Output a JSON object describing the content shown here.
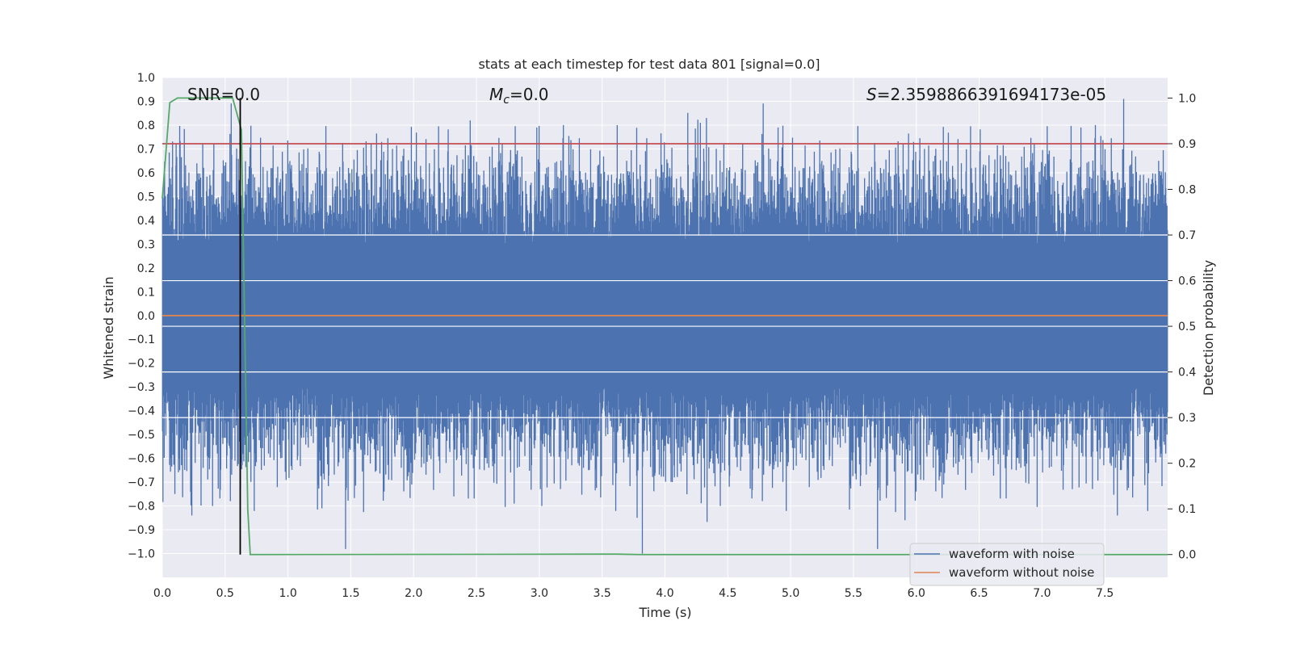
{
  "chart_data": {
    "type": "line",
    "title": "stats at each timestep for test data 801 [signal=0.0]",
    "xlabel": "Time (s)",
    "ylabel": "Whitened strain",
    "ylabel_right": "Detection probability",
    "xlim": [
      0.0,
      8.0
    ],
    "ylim": [
      -1.1,
      1.0
    ],
    "ylim_right": [
      -0.05,
      1.045
    ],
    "x_ticks": [
      "0.0",
      "0.5",
      "1.0",
      "1.5",
      "2.0",
      "2.5",
      "3.0",
      "3.5",
      "4.0",
      "4.5",
      "5.0",
      "5.5",
      "6.0",
      "6.5",
      "7.0",
      "7.5"
    ],
    "y_ticks": [
      "1.0",
      "0.9",
      "0.8",
      "0.7",
      "0.6",
      "0.5",
      "0.4",
      "0.3",
      "0.2",
      "0.1",
      "0.0",
      "−0.1",
      "−0.2",
      "−0.3",
      "−0.4",
      "−0.5",
      "−0.6",
      "−0.7",
      "−0.8",
      "−0.9",
      "−1.0"
    ],
    "y_ticks_right": [
      "1.0",
      "0.9",
      "0.8",
      "0.7",
      "0.6",
      "0.5",
      "0.4",
      "0.3",
      "0.2",
      "0.1",
      "0.0"
    ],
    "grid": true,
    "annotations": {
      "snr": "SNR=0.0",
      "mc_symbol": "M",
      "mc_sub": "c",
      "mc_value": "=0.0",
      "s_symbol": "S",
      "s_value": "=2.3598866391694173e-05"
    },
    "series": [
      {
        "name": "waveform with noise",
        "color": "#4c72b0",
        "axis": "left",
        "envelope_note": "dense noise",
        "peaks_top": [
          [
            0.11,
            0.72
          ],
          [
            0.41,
            0.72
          ],
          [
            0.59,
            0.66
          ],
          [
            2.45,
            0.82
          ],
          [
            2.98,
            0.79
          ],
          [
            3.62,
            0.8
          ],
          [
            4.33,
            0.83
          ],
          [
            4.9,
            0.79
          ],
          [
            7.31,
            0.79
          ],
          [
            7.65,
            0.91
          ]
        ],
        "peaks_bottom": [
          [
            0.1,
            -0.75
          ],
          [
            0.4,
            -0.8
          ],
          [
            1.27,
            -0.81
          ],
          [
            2.32,
            -0.76
          ],
          [
            2.8,
            -0.79
          ],
          [
            3.02,
            -0.8
          ],
          [
            3.82,
            -1.0
          ],
          [
            4.44,
            -0.8
          ],
          [
            5.91,
            -0.86
          ],
          [
            7.6,
            -0.84
          ]
        ]
      },
      {
        "name": "waveform without noise",
        "color": "#dd8452",
        "axis": "left",
        "x": [
          0.0,
          8.0
        ],
        "y": [
          0.0,
          0.0
        ]
      },
      {
        "color": "#55a868",
        "axis": "right",
        "x": [
          0.0,
          0.06,
          0.12,
          0.56,
          0.63,
          0.68,
          0.7,
          3.6,
          3.8,
          8.0
        ],
        "y": [
          0.78,
          0.99,
          1.0,
          1.0,
          0.93,
          0.1,
          0.0,
          0.001,
          0.0,
          0.0
        ]
      },
      {
        "color": "#c44e52",
        "axis": "right",
        "x": [
          0.0,
          8.0
        ],
        "y": [
          0.9,
          0.9
        ]
      },
      {
        "color": "#000000",
        "axis": "right",
        "x": [
          0.62,
          0.62
        ],
        "y": [
          0.0,
          1.0
        ]
      }
    ],
    "legend": {
      "placement": "lower-right",
      "entries": [
        "waveform with noise",
        "waveform without noise"
      ]
    }
  }
}
